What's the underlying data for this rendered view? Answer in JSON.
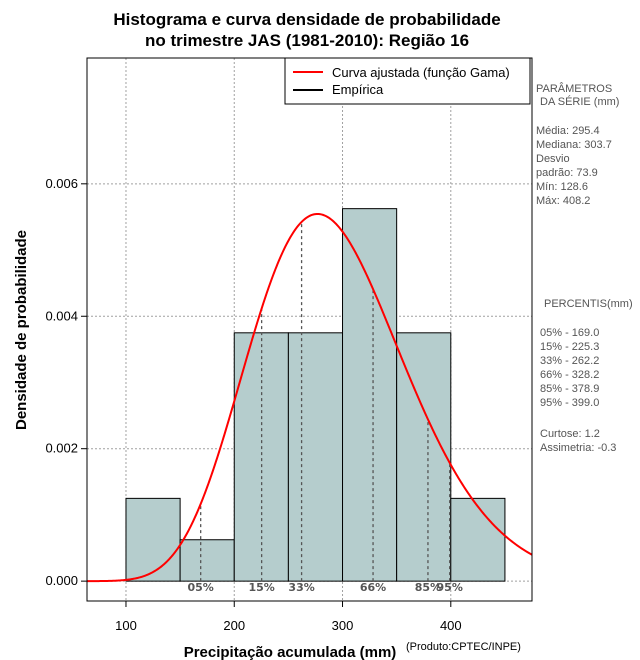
{
  "chart_data": {
    "type": "bar",
    "title": [
      "Histograma e curva densidade de probabilidade",
      "no trimestre JAS (1981-2010): Região 16"
    ],
    "xlabel": "Precipitação acumulada (mm)",
    "ylabel": "Densidade de probabilidade",
    "xlim": [
      64,
      475
    ],
    "ylim": [
      -0.0003,
      0.0079
    ],
    "xticks": [
      100,
      200,
      300,
      400
    ],
    "yticks": [
      0.0,
      0.002,
      0.004,
      0.006
    ],
    "ytick_labels": [
      "0.000",
      "0.002",
      "0.004",
      "0.006"
    ],
    "grid": true,
    "bins": [
      {
        "start": 100,
        "end": 150,
        "density": 0.00125
      },
      {
        "start": 150,
        "end": 200,
        "density": 0.000625
      },
      {
        "start": 200,
        "end": 250,
        "density": 0.00375
      },
      {
        "start": 250,
        "end": 300,
        "density": 0.00375
      },
      {
        "start": 300,
        "end": 350,
        "density": 0.005625
      },
      {
        "start": 350,
        "end": 400,
        "density": 0.00375
      },
      {
        "start": 400,
        "end": 450,
        "density": 0.00125
      }
    ],
    "gamma_fit": {
      "mean": 295.4,
      "sd": 73.9
    },
    "percentile_lines": [
      {
        "label": "05%",
        "value": 169.0
      },
      {
        "label": "15%",
        "value": 225.3
      },
      {
        "label": "33%",
        "value": 262.2
      },
      {
        "label": "66%",
        "value": 328.2
      },
      {
        "label": "85%",
        "value": 378.9
      },
      {
        "label": "95%",
        "value": 399.0
      }
    ],
    "legend": {
      "position": "top-right",
      "entries": [
        {
          "label": "Curva ajustada (função Gama)",
          "color": "#ff0000"
        },
        {
          "label": "Empírica",
          "color": "#000000"
        }
      ]
    },
    "colors": {
      "bar_fill": "#b5cdcd",
      "bar_stroke": "#000000",
      "curve": "#ff0000",
      "grid": "#a0a0a0",
      "pct_line": "#555555"
    }
  },
  "side_panel": {
    "parametros_title": [
      "PARÂMETROS",
      "DA SÉRIE (mm)"
    ],
    "parametros": [
      "Média:  295.4",
      "Mediana:  303.7",
      "Desvio",
      "padrão:  73.9",
      "Mín:  128.6",
      "Máx:  408.2"
    ],
    "percentis_title": "PERCENTIS(mm)",
    "percentis": [
      "05% -  169.0",
      "15% -  225.3",
      "33% -  262.2",
      "66% -  328.2",
      "85% -  378.9",
      "95% -  399.0"
    ],
    "extras": [
      "Curtose:  1.2",
      "Assimetria:  -0.3"
    ]
  },
  "credit": "(Produto:CPTEC/INPE)"
}
